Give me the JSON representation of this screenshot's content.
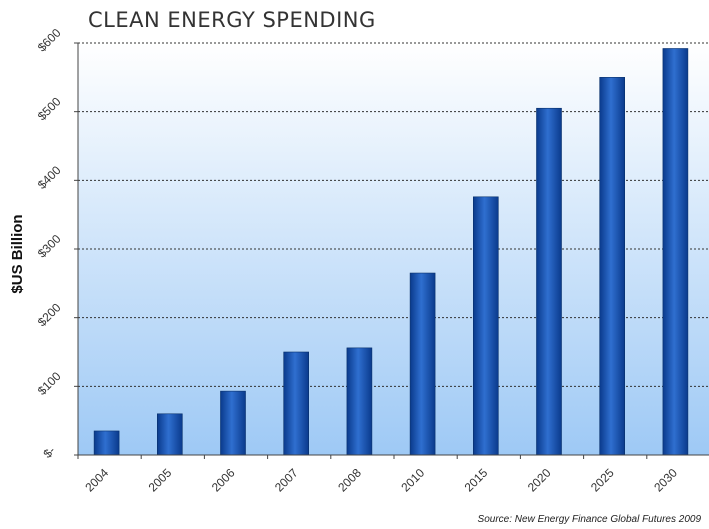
{
  "chart_data": {
    "type": "bar",
    "title": "CLEAN ENERGY SPENDING",
    "xlabel": "",
    "ylabel": "$US Billion",
    "categories": [
      "2004",
      "2005",
      "2006",
      "2007",
      "2008",
      "2010",
      "2015",
      "2020",
      "2025",
      "2030"
    ],
    "values": [
      35,
      60,
      93,
      150,
      156,
      265,
      376,
      505,
      550,
      592
    ],
    "ylim": [
      0,
      600
    ],
    "yticks": [
      0,
      100,
      200,
      300,
      400,
      500,
      600
    ],
    "ytick_labels": [
      "$-",
      "$100",
      "$200",
      "$300",
      "$400",
      "$500",
      "$600"
    ],
    "grid": true,
    "legend": "none",
    "source": "Source: New Energy Finance Global Futures 2009",
    "colors": {
      "bar_light": "#2f6fd0",
      "bar_dark": "#0a3a8c",
      "bg_top": "#ffffff",
      "bg_bottom": "#9ec9f5",
      "grid": "#333333"
    }
  }
}
